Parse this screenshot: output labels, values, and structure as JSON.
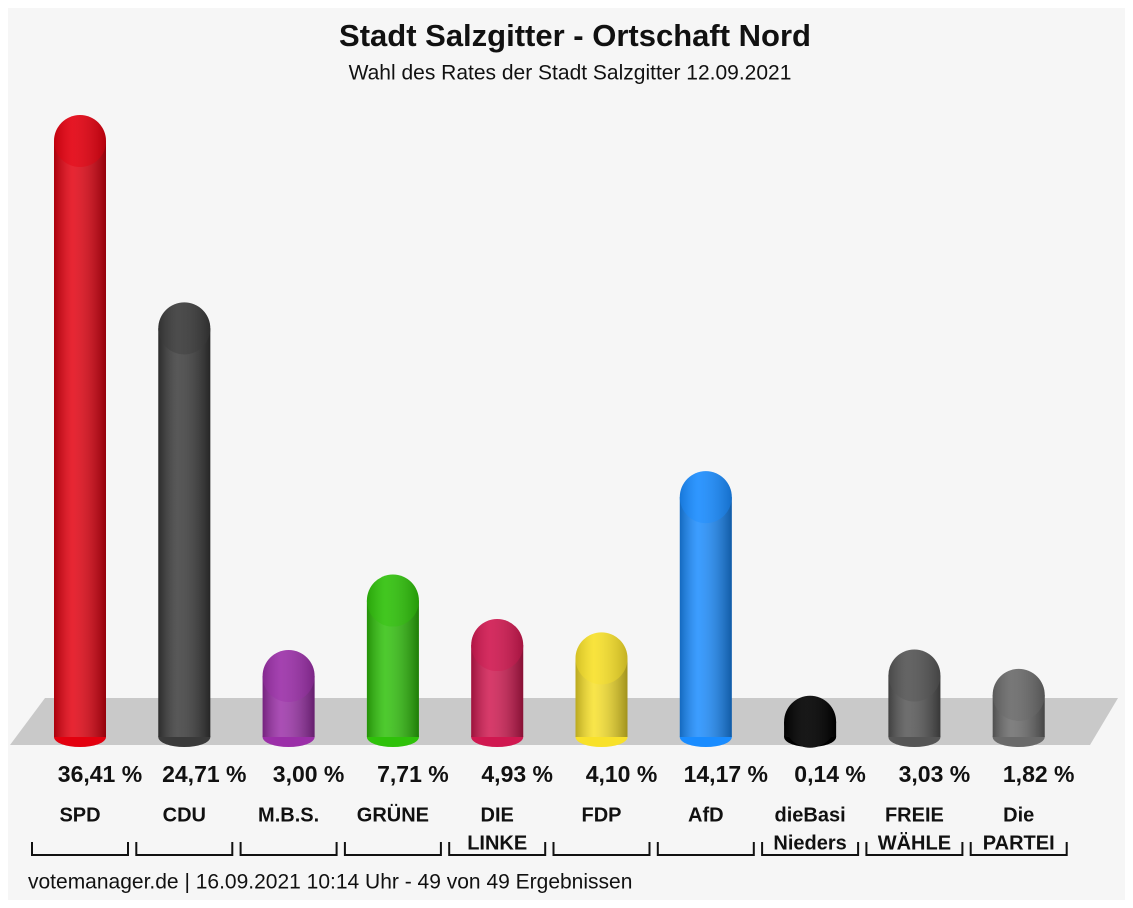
{
  "chart_data": {
    "type": "bar",
    "title": "Stadt Salzgitter - Ortschaft Nord",
    "subtitle": "Wahl des Rates der Stadt Salzgitter 12.09.2021",
    "categories": [
      [
        "SPD"
      ],
      [
        "CDU"
      ],
      [
        "M.B.S."
      ],
      [
        "GRÜNE"
      ],
      [
        "DIE",
        "LINKE"
      ],
      [
        "FDP"
      ],
      [
        "AfD"
      ],
      [
        "dieBasi",
        "Nieders"
      ],
      [
        "FREIE",
        "WÄHLE"
      ],
      [
        "Die",
        "PARTEI"
      ]
    ],
    "values": [
      36.41,
      24.71,
      3.0,
      7.71,
      4.93,
      4.1,
      14.17,
      0.14,
      3.03,
      1.82
    ],
    "value_labels": [
      "36,41 %",
      "24,71 %",
      "3,00 %",
      "7,71 %",
      "4,93 %",
      "4,10 %",
      "14,17 %",
      "0,14 %",
      "3,03 %",
      "1,82 %"
    ],
    "colors": [
      "#e3000f",
      "#3a3a3a",
      "#9b2fa8",
      "#2fc10a",
      "#d01850",
      "#f8e12a",
      "#1a8cff",
      "#000000",
      "#555555",
      "#6a6a6a"
    ],
    "footer": "votemanager.de | 16.09.2021 10:14 Uhr - 49 von 49 Ergebnissen"
  }
}
